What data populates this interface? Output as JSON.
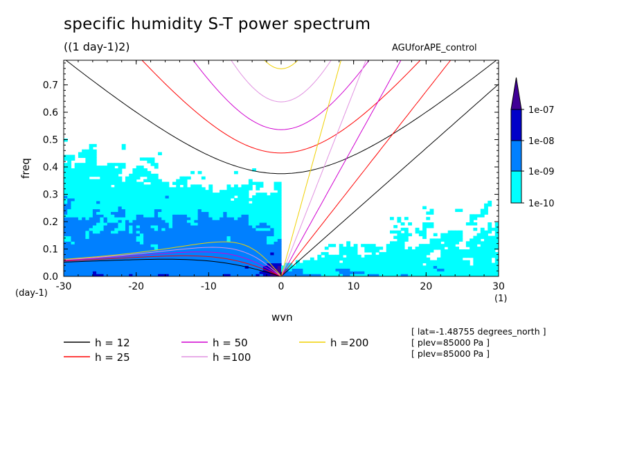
{
  "chart_data": {
    "type": "heatmap",
    "title": "specific humidity S-T power spectrum",
    "subtitle": "((1 day-1)2)",
    "dataset_label": "AGUforAPE_control",
    "xlabel": "wvn",
    "ylabel": "freq",
    "x_unit": "(1)",
    "y_unit": "(day-1)",
    "xlim": [
      -30,
      30
    ],
    "ylim": [
      0,
      0.79
    ],
    "x_ticks": [
      -30,
      -20,
      -10,
      0,
      10,
      20,
      30
    ],
    "x_tick_labels": [
      "-30",
      "-20",
      "-10",
      "0",
      "10",
      "20",
      "30"
    ],
    "y_ticks": [
      0,
      0.1,
      0.2,
      0.3,
      0.4,
      0.5,
      0.6,
      0.7
    ],
    "y_tick_labels": [
      "0.0",
      "0.1",
      "0.2",
      "0.3",
      "0.4",
      "0.5",
      "0.6",
      "0.7"
    ],
    "colorbar": {
      "levels": [
        "1e-10",
        "1e-09",
        "1e-08",
        "1e-07"
      ],
      "colors": [
        "#00ffff",
        "#0080ff",
        "#0000c8",
        "#400096"
      ]
    },
    "dispersion_curves": [
      {
        "name": "h = 12",
        "h": 12,
        "color": "#000000"
      },
      {
        "name": "h = 25",
        "h": 25,
        "color": "#ff0000"
      },
      {
        "name": "h = 50",
        "h": 50,
        "color": "#d000d0"
      },
      {
        "name": "h =100",
        "h": 100,
        "color": "#e090e0"
      },
      {
        "name": "h =200",
        "h": 200,
        "color": "#f0d000"
      }
    ],
    "annotations": [
      "[ lat=-1.48755 degrees_north ]",
      "[ plev=85000 Pa ]",
      "[ plev=85000 Pa ]"
    ]
  }
}
